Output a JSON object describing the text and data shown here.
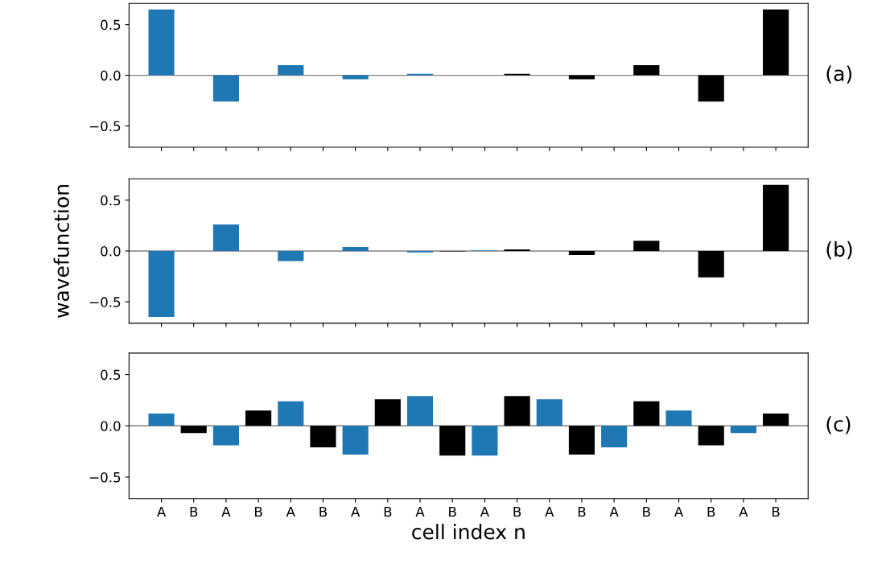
{
  "chart_data": [
    {
      "type": "bar",
      "categories": [
        null,
        null,
        null,
        null,
        null,
        null,
        null,
        null,
        null,
        null,
        null,
        null,
        null,
        null,
        null,
        null,
        null,
        null,
        null,
        null
      ],
      "values": [
        0.65,
        0,
        -0.26,
        0,
        0.1,
        0,
        -0.04,
        0,
        0.015,
        null,
        0,
        0.015,
        0,
        -0.04,
        0,
        0.1,
        0,
        -0.26,
        0,
        0.65
      ],
      "colors": [
        "#1f77b4",
        "#000000",
        "#1f77b4",
        "#000000",
        "#1f77b4",
        "#000000",
        "#1f77b4",
        "#000000",
        "#1f77b4",
        "#000000",
        "#1f77b4",
        "#000000",
        "#1f77b4",
        "#000000",
        "#1f77b4",
        "#000000",
        "#1f77b4",
        "#000000",
        "#1f77b4",
        "#000000"
      ],
      "ylim": [
        -0.71,
        0.71
      ],
      "yticks": [
        {
          "value": -0.5,
          "label": "−0.5"
        },
        {
          "value": 0,
          "label": "0.0"
        },
        {
          "value": 0.5,
          "label": "0.5"
        }
      ],
      "ref_lines": [
        {
          "axis": "y",
          "value": 0,
          "color": "#808080"
        }
      ],
      "annotations": [
        "(a)"
      ],
      "tick_labels": "y"
    },
    {
      "type": "bar",
      "categories": [
        null,
        null,
        null,
        null,
        null,
        null,
        null,
        null,
        null,
        null,
        null,
        null,
        null,
        null,
        null,
        null,
        null,
        null,
        null,
        null
      ],
      "values": [
        -0.65,
        0,
        0.26,
        0,
        -0.1,
        0,
        0.04,
        0,
        -0.015,
        -0.005,
        0.005,
        0.015,
        0,
        -0.04,
        0,
        0.1,
        0,
        -0.26,
        0,
        0.65
      ],
      "colors": [
        "#1f77b4",
        "#000000",
        "#1f77b4",
        "#000000",
        "#1f77b4",
        "#000000",
        "#1f77b4",
        "#000000",
        "#1f77b4",
        "#000000",
        "#1f77b4",
        "#000000",
        "#1f77b4",
        "#000000",
        "#1f77b4",
        "#000000",
        "#1f77b4",
        "#000000",
        "#1f77b4",
        "#000000"
      ],
      "ylim": [
        -0.71,
        0.71
      ],
      "yticks": [
        {
          "value": -0.5,
          "label": "−0.5"
        },
        {
          "value": 0,
          "label": "0.0"
        },
        {
          "value": 0.5,
          "label": "0.5"
        }
      ],
      "ylabel": "wavefunction",
      "ref_lines": [
        {
          "axis": "y",
          "value": 0,
          "color": "#808080"
        }
      ],
      "annotations": [
        "(b)"
      ],
      "tick_labels": "y"
    },
    {
      "type": "bar",
      "categories": [
        "A",
        "B",
        "A",
        "B",
        "A",
        "B",
        "A",
        "B",
        "A",
        "B",
        "A",
        "B",
        "A",
        "B",
        "A",
        "B",
        "A",
        "B",
        "A",
        "B"
      ],
      "values": [
        0.12,
        -0.07,
        -0.19,
        0.15,
        0.24,
        -0.21,
        -0.28,
        0.26,
        0.29,
        -0.29,
        -0.29,
        0.29,
        0.26,
        -0.28,
        -0.21,
        0.24,
        0.15,
        -0.19,
        -0.07,
        0.12
      ],
      "colors": [
        "#1f77b4",
        "#000000",
        "#1f77b4",
        "#000000",
        "#1f77b4",
        "#000000",
        "#1f77b4",
        "#000000",
        "#1f77b4",
        "#000000",
        "#1f77b4",
        "#000000",
        "#1f77b4",
        "#000000",
        "#1f77b4",
        "#000000",
        "#1f77b4",
        "#000000",
        "#1f77b4",
        "#000000"
      ],
      "ylim": [
        -0.71,
        0.71
      ],
      "yticks": [
        {
          "value": -0.5,
          "label": "−0.5"
        },
        {
          "value": 0,
          "label": "0.0"
        },
        {
          "value": 0.5,
          "label": "0.5"
        }
      ],
      "xlabel": "cell index n",
      "ref_lines": [
        {
          "axis": "y",
          "value": 0,
          "color": "#808080"
        }
      ],
      "annotations": [
        "(c)"
      ]
    }
  ]
}
